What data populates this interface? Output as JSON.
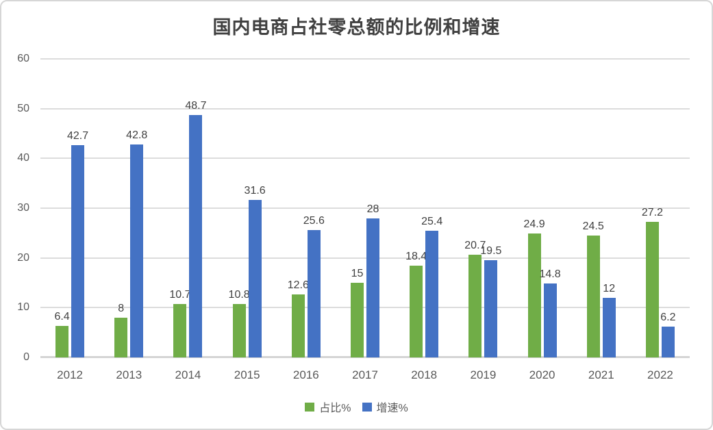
{
  "chart_data": {
    "type": "bar",
    "title": "国内电商占社零总额的比例和增速",
    "categories": [
      "2012",
      "2013",
      "2014",
      "2015",
      "2016",
      "2017",
      "2018",
      "2019",
      "2020",
      "2021",
      "2022"
    ],
    "series": [
      {
        "name": "占比%",
        "color": "#70AD47",
        "values": [
          6.4,
          8,
          10.7,
          10.8,
          12.6,
          15,
          18.4,
          20.7,
          24.9,
          24.5,
          27.2
        ]
      },
      {
        "name": "增速%",
        "color": "#4472C4",
        "values": [
          42.7,
          42.8,
          48.7,
          31.6,
          25.6,
          28,
          25.4,
          19.5,
          14.8,
          12,
          6.2
        ]
      }
    ],
    "xlabel": "",
    "ylabel": "",
    "ylim": [
      0,
      60
    ],
    "ytick_step": 10,
    "grid": true,
    "legend_position": "bottom",
    "colors": {
      "gridline": "#dcdcdc",
      "axis_line": "#d4d4d4",
      "tick_text": "#595959",
      "data_label_text": "#404040",
      "title_text": "#404040",
      "border": "#d6d6d6"
    }
  }
}
